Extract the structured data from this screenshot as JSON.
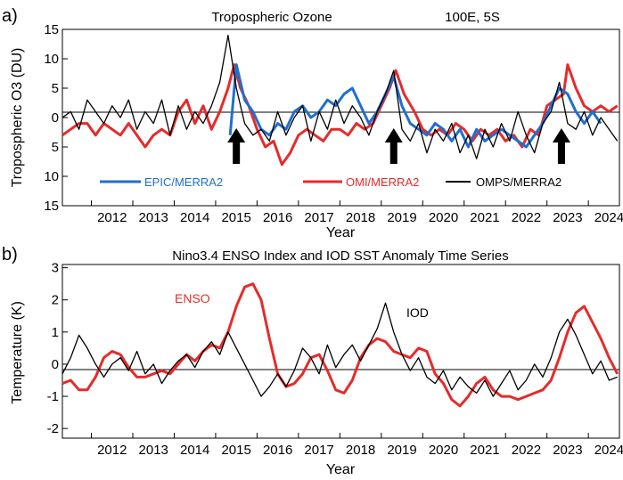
{
  "panels": [
    {
      "label": "a)",
      "title": "Tropospheric Ozone",
      "location": "100E, 5S",
      "xlabel": "Year",
      "ylabel": "Tropospheric O3 (DU)",
      "x_ticks": [
        "2012",
        "2013",
        "2014",
        "2015",
        "2016",
        "2017",
        "2018",
        "2019",
        "2020",
        "2021",
        "2022",
        "2023",
        "2024"
      ],
      "y_ticks": [
        "15",
        "10",
        "5",
        "0",
        "5",
        "10",
        "15"
      ],
      "legend": [
        {
          "label": "EPIC/MERRA2",
          "color": "#1f6fcf"
        },
        {
          "label": "OMI/MERRA2",
          "color": "#e52b2b"
        },
        {
          "label": "OMPS/MERRA2",
          "color": "#000000"
        }
      ],
      "arrows_at_year": [
        2015.5,
        2019.3,
        2023.35
      ]
    },
    {
      "label": "b)",
      "title": "Nino3.4 ENSO Index and IOD SST Anomaly Time Series",
      "xlabel": "Year",
      "ylabel": "Temperature (K)",
      "x_ticks": [
        "2012",
        "2013",
        "2014",
        "2015",
        "2016",
        "2017",
        "2018",
        "2019",
        "2020",
        "2021",
        "2022",
        "2023",
        "2024"
      ],
      "y_ticks": [
        "3",
        "2",
        "1",
        "0",
        "-1",
        "-2"
      ],
      "annotations": [
        {
          "text": "ENSO",
          "color": "#e52b2b"
        },
        {
          "text": "IOD",
          "color": "#000000"
        }
      ]
    }
  ],
  "chart_data": [
    {
      "type": "line",
      "title": "Tropospheric Ozone 100E, 5S",
      "xlabel": "Year",
      "ylabel": "Tropospheric O3 (DU)",
      "xlim": [
        2011.3,
        2024.75
      ],
      "ylim": [
        -15,
        15
      ],
      "grid": false,
      "series": [
        {
          "name": "OMI/MERRA2",
          "color": "#e52b2b",
          "x": [
            2011.3,
            2011.5,
            2011.7,
            2011.9,
            2012.1,
            2012.3,
            2012.5,
            2012.7,
            2012.9,
            2013.1,
            2013.3,
            2013.5,
            2013.7,
            2013.9,
            2014.1,
            2014.3,
            2014.5,
            2014.7,
            2014.9,
            2015.1,
            2015.3,
            2015.45,
            2015.6,
            2015.8,
            2016.0,
            2016.2,
            2016.4,
            2016.6,
            2016.8,
            2017.0,
            2017.2,
            2017.4,
            2017.6,
            2017.8,
            2018.0,
            2018.2,
            2018.4,
            2018.6,
            2018.8,
            2019.0,
            2019.2,
            2019.35,
            2019.55,
            2019.8,
            2020.0,
            2020.2,
            2020.4,
            2020.6,
            2020.8,
            2021.0,
            2021.2,
            2021.4,
            2021.6,
            2021.8,
            2022.0,
            2022.2,
            2022.4,
            2022.6,
            2022.8,
            2023.0,
            2023.2,
            2023.4,
            2023.5,
            2023.7,
            2023.9,
            2024.1,
            2024.3,
            2024.5,
            2024.7
          ],
          "values": [
            -3,
            -2,
            -1,
            -1,
            -3,
            -1,
            -2,
            -3,
            -1,
            -3,
            -5,
            -3,
            -2,
            -3,
            1,
            3,
            -1,
            2,
            -2,
            1,
            5,
            9,
            5,
            2,
            -2,
            -5,
            -4,
            -8,
            -6,
            -3,
            -2,
            -3,
            -4,
            -2,
            -2,
            -3,
            -1,
            -2,
            -1,
            2,
            5,
            8,
            4,
            1,
            -2,
            -3,
            -2,
            -3,
            -1,
            -2,
            -4,
            -2,
            -3,
            -2,
            -4,
            -3,
            -5,
            -2,
            -3,
            2,
            3,
            4,
            9,
            5,
            2,
            1,
            2,
            1,
            2
          ]
        },
        {
          "name": "EPIC/MERRA2",
          "color": "#1f6fcf",
          "x": [
            2015.35,
            2015.5,
            2015.7,
            2015.9,
            2016.1,
            2016.3,
            2016.5,
            2016.7,
            2016.9,
            2017.1,
            2017.3,
            2017.5,
            2017.7,
            2017.9,
            2018.1,
            2018.3,
            2018.5,
            2018.7,
            2018.9,
            2019.1,
            2019.3,
            2019.5,
            2019.7,
            2019.9,
            2020.1,
            2020.3,
            2020.5,
            2020.7,
            2020.9,
            2021.1,
            2021.3,
            2021.5,
            2021.7,
            2021.9,
            2022.1,
            2022.3,
            2022.5,
            2022.7,
            2022.9,
            2023.1,
            2023.3,
            2023.5,
            2023.7,
            2023.9,
            2024.1,
            2024.3
          ],
          "values": [
            -3,
            9,
            3,
            1,
            -2,
            -3,
            -1,
            -2,
            1,
            2,
            0,
            1,
            3,
            2,
            4,
            5,
            2,
            -1,
            1,
            4,
            7,
            2,
            -1,
            -2,
            -3,
            -1,
            -2,
            -4,
            -2,
            -5,
            -2,
            -4,
            -3,
            -2,
            -3,
            -4,
            -5,
            -3,
            -1,
            2,
            5,
            4,
            1,
            -1,
            1,
            -1
          ]
        },
        {
          "name": "OMPS/MERRA2",
          "color": "#000000",
          "x": [
            2011.3,
            2011.5,
            2011.7,
            2011.9,
            2012.1,
            2012.3,
            2012.5,
            2012.7,
            2012.9,
            2013.1,
            2013.3,
            2013.5,
            2013.7,
            2013.9,
            2014.1,
            2014.3,
            2014.5,
            2014.7,
            2014.9,
            2015.1,
            2015.3,
            2015.5,
            2015.7,
            2015.9,
            2016.1,
            2016.3,
            2016.5,
            2016.7,
            2016.9,
            2017.1,
            2017.3,
            2017.5,
            2017.7,
            2017.9,
            2018.1,
            2018.3,
            2018.5,
            2018.7,
            2018.9,
            2019.1,
            2019.3,
            2019.5,
            2019.7,
            2019.9,
            2020.1,
            2020.3,
            2020.5,
            2020.7,
            2020.9,
            2021.1,
            2021.3,
            2021.5,
            2021.7,
            2021.9,
            2022.1,
            2022.3,
            2022.5,
            2022.7,
            2022.9,
            2023.1,
            2023.3,
            2023.5,
            2023.7,
            2023.9,
            2024.1,
            2024.3,
            2024.5,
            2024.7
          ],
          "values": [
            0,
            1,
            -2,
            3,
            1,
            -1,
            2,
            0,
            3,
            -2,
            1,
            -1,
            3,
            -3,
            2,
            -2,
            1,
            -1,
            2,
            6,
            14,
            5,
            -1,
            -3,
            -2,
            -4,
            1,
            -3,
            0,
            2,
            -4,
            1,
            -2,
            3,
            -1,
            2,
            0,
            -3,
            1,
            4,
            8,
            -2,
            -4,
            -1,
            -6,
            -2,
            -4,
            -1,
            -6,
            -3,
            -7,
            -2,
            -5,
            -1,
            -4,
            1,
            -3,
            -6,
            -1,
            1,
            6,
            -1,
            -2,
            1,
            -3,
            0,
            -2,
            -4
          ]
        }
      ],
      "legend_position": "bottom"
    },
    {
      "type": "line",
      "title": "Nino3.4 ENSO Index and IOD SST Anomaly Time Series",
      "xlabel": "Year",
      "ylabel": "Temperature (K)",
      "xlim": [
        2011.3,
        2024.75
      ],
      "ylim": [
        -2.3,
        3.1
      ],
      "grid": false,
      "series": [
        {
          "name": "ENSO",
          "color": "#e52b2b",
          "x": [
            2011.3,
            2011.5,
            2011.7,
            2011.9,
            2012.1,
            2012.3,
            2012.5,
            2012.7,
            2012.9,
            2013.1,
            2013.3,
            2013.5,
            2013.7,
            2013.9,
            2014.1,
            2014.3,
            2014.5,
            2014.7,
            2014.9,
            2015.1,
            2015.3,
            2015.5,
            2015.7,
            2015.9,
            2016.1,
            2016.3,
            2016.5,
            2016.7,
            2016.9,
            2017.1,
            2017.3,
            2017.5,
            2017.7,
            2017.9,
            2018.1,
            2018.3,
            2018.5,
            2018.7,
            2018.9,
            2019.1,
            2019.3,
            2019.5,
            2019.7,
            2019.9,
            2020.1,
            2020.3,
            2020.5,
            2020.7,
            2020.9,
            2021.1,
            2021.3,
            2021.5,
            2021.7,
            2021.9,
            2022.1,
            2022.3,
            2022.5,
            2022.7,
            2022.9,
            2023.1,
            2023.3,
            2023.5,
            2023.7,
            2023.9,
            2024.1,
            2024.3,
            2024.5,
            2024.7
          ],
          "values": [
            -0.6,
            -0.5,
            -0.8,
            -0.8,
            -0.4,
            0.2,
            0.4,
            0.3,
            -0.1,
            -0.4,
            -0.4,
            -0.3,
            -0.2,
            -0.3,
            0.0,
            0.3,
            0.1,
            0.4,
            0.6,
            0.5,
            1.0,
            1.8,
            2.4,
            2.5,
            2.0,
            0.8,
            -0.3,
            -0.7,
            -0.6,
            -0.3,
            0.2,
            0.3,
            -0.2,
            -0.8,
            -0.9,
            -0.5,
            0.2,
            0.6,
            0.8,
            0.7,
            0.4,
            0.3,
            0.2,
            0.5,
            0.4,
            -0.3,
            -0.6,
            -1.1,
            -1.3,
            -1.0,
            -0.6,
            -0.4,
            -0.8,
            -1.0,
            -1.0,
            -1.1,
            -1.0,
            -0.9,
            -0.8,
            -0.5,
            0.2,
            1.0,
            1.6,
            1.8,
            1.3,
            0.8,
            0.2,
            -0.3
          ]
        },
        {
          "name": "IOD",
          "color": "#000000",
          "x": [
            2011.3,
            2011.5,
            2011.7,
            2011.9,
            2012.1,
            2012.3,
            2012.5,
            2012.7,
            2012.9,
            2013.1,
            2013.3,
            2013.5,
            2013.7,
            2013.9,
            2014.1,
            2014.3,
            2014.5,
            2014.7,
            2014.9,
            2015.1,
            2015.3,
            2015.5,
            2015.7,
            2015.9,
            2016.1,
            2016.3,
            2016.5,
            2016.7,
            2016.9,
            2017.1,
            2017.3,
            2017.5,
            2017.7,
            2017.9,
            2018.1,
            2018.3,
            2018.5,
            2018.7,
            2018.9,
            2019.1,
            2019.3,
            2019.5,
            2019.7,
            2019.9,
            2020.1,
            2020.3,
            2020.5,
            2020.7,
            2020.9,
            2021.1,
            2021.3,
            2021.5,
            2021.7,
            2021.9,
            2022.1,
            2022.3,
            2022.5,
            2022.7,
            2022.9,
            2023.1,
            2023.3,
            2023.5,
            2023.7,
            2023.9,
            2024.1,
            2024.3,
            2024.5,
            2024.7
          ],
          "values": [
            -0.3,
            0.2,
            0.9,
            0.5,
            0.0,
            -0.4,
            0.0,
            0.2,
            -0.2,
            0.4,
            -0.3,
            0.0,
            -0.6,
            -0.2,
            0.1,
            0.3,
            -0.1,
            0.4,
            0.7,
            0.3,
            1.0,
            0.5,
            0.0,
            -0.5,
            -1.0,
            -0.7,
            -0.3,
            -0.7,
            -0.2,
            0.5,
            0.2,
            -0.3,
            0.6,
            -0.1,
            0.3,
            0.6,
            0.1,
            0.6,
            1.1,
            1.9,
            1.0,
            0.3,
            -0.2,
            0.2,
            -0.4,
            -0.6,
            -0.2,
            -0.8,
            -0.4,
            -0.7,
            -0.9,
            -0.5,
            -1.0,
            -0.6,
            -0.2,
            -0.8,
            -0.5,
            0.0,
            -0.4,
            0.2,
            1.0,
            1.4,
            0.9,
            0.3,
            -0.3,
            0.1,
            -0.5,
            -0.4
          ]
        }
      ],
      "legend_position": "inline annotations"
    }
  ]
}
